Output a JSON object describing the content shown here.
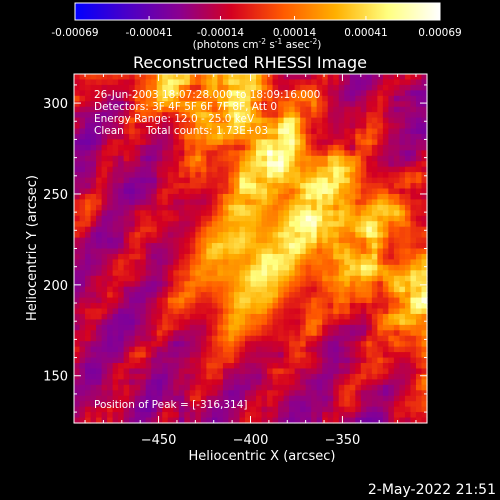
{
  "colorbar": {
    "tick_labels": [
      "-0.00069",
      "-0.00041",
      "-0.00014",
      "0.00014",
      "0.00041",
      "0.00069"
    ],
    "tick_values": [
      -0.00069,
      -0.00041,
      -0.00014,
      0.00014,
      0.00041,
      0.00069
    ],
    "range": [
      -0.00069,
      0.00069
    ],
    "units_prefix": "(photons cm",
    "units_exp1": "-2",
    "units_mid": " s",
    "units_exp2": "-1",
    "units_mid2": " asec",
    "units_exp3": "-2",
    "units_suffix": ")",
    "colors": [
      "#0000ff",
      "#4a00c8",
      "#8a0090",
      "#d40020",
      "#ff5a00",
      "#ffb000",
      "#ffff80",
      "#ffffff"
    ]
  },
  "chart_data": {
    "type": "heatmap",
    "title": "Reconstructed RHESSI Image",
    "xlabel": "Heliocentric X (arcsec)",
    "ylabel": "Heliocentric Y (arcsec)",
    "xlim": [
      -496,
      -304
    ],
    "ylim": [
      124,
      316
    ],
    "x_ticks": [
      -450,
      -400,
      -350
    ],
    "y_ticks": [
      150,
      200,
      250,
      300
    ],
    "grid": false,
    "peak_position": [
      -316,
      314
    ],
    "annotations": [
      "26-Jun-2003 18:07:28.000 to 18:09:16.000",
      "Detectors: 3F 4F 5F 6F 7F 8F, Att 0",
      "Energy Range: 12.0 - 25.0 keV",
      "Clean",
      "Total counts: 1.73E+03"
    ],
    "peak_label": "Position of Peak = [-316,314]"
  },
  "footer": {
    "timestamp": "2-May-2022 21:51"
  }
}
